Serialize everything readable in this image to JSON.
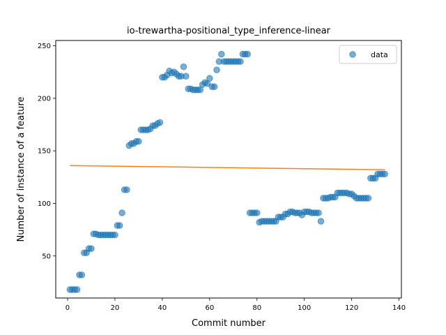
{
  "chart_data": {
    "type": "scatter",
    "title": "io-trewartha-positional_type_inference-linear",
    "xlabel": "Commit number",
    "ylabel": "Number of instance of a feature",
    "xlim": [
      -5,
      141
    ],
    "ylim": [
      10,
      255
    ],
    "xticks": [
      0,
      20,
      40,
      60,
      80,
      100,
      120,
      140
    ],
    "yticks": [
      50,
      100,
      150,
      200,
      250
    ],
    "legend_position": "top-right",
    "colors": {
      "data": "#1f77b4",
      "fit": "#ff7f0e"
    },
    "series": [
      {
        "name": "data",
        "x": [
          1,
          2,
          3,
          4,
          5,
          6,
          7,
          8,
          9,
          10,
          11,
          12,
          13,
          14,
          15,
          16,
          17,
          18,
          19,
          20,
          21,
          22,
          23,
          24,
          25,
          26,
          27,
          28,
          29,
          30,
          31,
          32,
          33,
          34,
          35,
          36,
          37,
          38,
          39,
          40,
          41,
          42,
          43,
          44,
          45,
          46,
          47,
          48,
          49,
          50,
          51,
          52,
          53,
          54,
          55,
          56,
          57,
          58,
          59,
          60,
          61,
          62,
          63,
          64,
          65,
          66,
          67,
          68,
          69,
          70,
          71,
          72,
          73,
          74,
          75,
          76,
          77,
          78,
          79,
          80,
          81,
          82,
          83,
          84,
          85,
          86,
          87,
          88,
          89,
          90,
          91,
          92,
          93,
          94,
          95,
          96,
          97,
          98,
          99,
          100,
          101,
          102,
          103,
          104,
          105,
          106,
          107,
          108,
          109,
          110,
          111,
          112,
          113,
          114,
          115,
          116,
          117,
          118,
          119,
          120,
          121,
          122,
          123,
          124,
          125,
          126,
          127,
          128,
          129,
          130,
          131,
          132,
          133,
          134
        ],
        "y": [
          18,
          18,
          18,
          18,
          32,
          32,
          53,
          53,
          57,
          57,
          71,
          71,
          70,
          70,
          70,
          70,
          70,
          70,
          70,
          70,
          79,
          79,
          91,
          113,
          113,
          155,
          157,
          157,
          159,
          159,
          170,
          170,
          170,
          170,
          171,
          174,
          174,
          176,
          177,
          220,
          220,
          222,
          226,
          224,
          225,
          223,
          221,
          221,
          230,
          221,
          209,
          209,
          208,
          208,
          208,
          208,
          213,
          215,
          214,
          219,
          211,
          211,
          227,
          235,
          242,
          235,
          235,
          235,
          235,
          235,
          235,
          235,
          235,
          242,
          242,
          242,
          91,
          91,
          91,
          91,
          82,
          83,
          83,
          83,
          83,
          83,
          83,
          83,
          87,
          87,
          87,
          90,
          90,
          92,
          92,
          91,
          91,
          91,
          89,
          92,
          92,
          92,
          91,
          91,
          91,
          91,
          83,
          105,
          105,
          105,
          106,
          106,
          106,
          110,
          110,
          110,
          110,
          110,
          109,
          109,
          107,
          105,
          105,
          105,
          105,
          105,
          105,
          124,
          124,
          124,
          128,
          128,
          128,
          128
        ]
      },
      {
        "name": "",
        "type": "line",
        "x": [
          1,
          134
        ],
        "y": [
          136,
          132
        ]
      }
    ],
    "legend": [
      "data"
    ]
  }
}
